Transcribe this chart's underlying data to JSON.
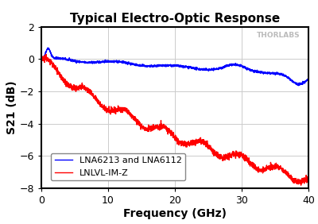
{
  "title": "Typical Electro-Optic Response",
  "xlabel": "Frequency (GHz)",
  "ylabel": "S21 (dB)",
  "xlim": [
    0,
    40
  ],
  "ylim": [
    -8,
    2
  ],
  "yticks": [
    -8,
    -6,
    -4,
    -2,
    0,
    2
  ],
  "xticks": [
    0,
    10,
    20,
    30,
    40
  ],
  "blue_label": "LNA6213 and LNA6112",
  "red_label": "LNLVL-IM-Z",
  "blue_color": "#0000FF",
  "red_color": "#FF0000",
  "bg_color": "#FFFFFF",
  "grid_color": "#CCCCCC",
  "watermark": "THORLABS",
  "watermark_color": "#BBBBBB",
  "title_fontsize": 11,
  "axis_label_fontsize": 10,
  "tick_fontsize": 9,
  "legend_fontsize": 8
}
